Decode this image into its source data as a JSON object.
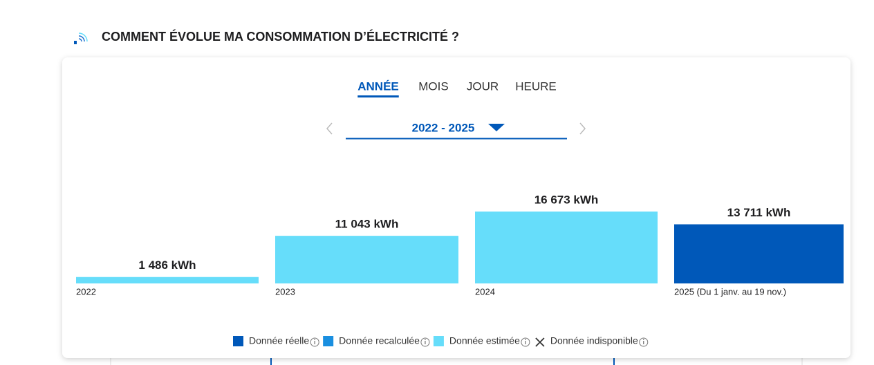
{
  "header": {
    "title": "COMMENT ÉVOLUE MA CONSOMMATION D’ÉLECTRICITÉ ?"
  },
  "tabs": [
    "ANNÉE",
    "MOIS",
    "JOUR",
    "HEURE"
  ],
  "active_tab": 0,
  "period": "2022 - 2025",
  "chart_data": {
    "type": "bar",
    "categories": [
      "2022",
      "2023",
      "2024",
      "2025 (Du 1 janv. au 19 nov.)"
    ],
    "values": [
      1486,
      11043,
      16673,
      13711
    ],
    "value_labels": [
      "1 486 kWh",
      "11 043 kWh",
      "16 673 kWh",
      "13 711 kWh"
    ],
    "colors": [
      "#66ddfa",
      "#66ddfa",
      "#66ddfa",
      "#0058b9"
    ],
    "legend": [
      {
        "name": "Donnée réelle",
        "color": "#0058b9"
      },
      {
        "name": "Donnée recalculée",
        "color": "#1a8fe0"
      },
      {
        "name": "Donnée estimée",
        "color": "#66ddfa"
      },
      {
        "name": "Donnée indisponible",
        "color": "#333333"
      }
    ]
  }
}
